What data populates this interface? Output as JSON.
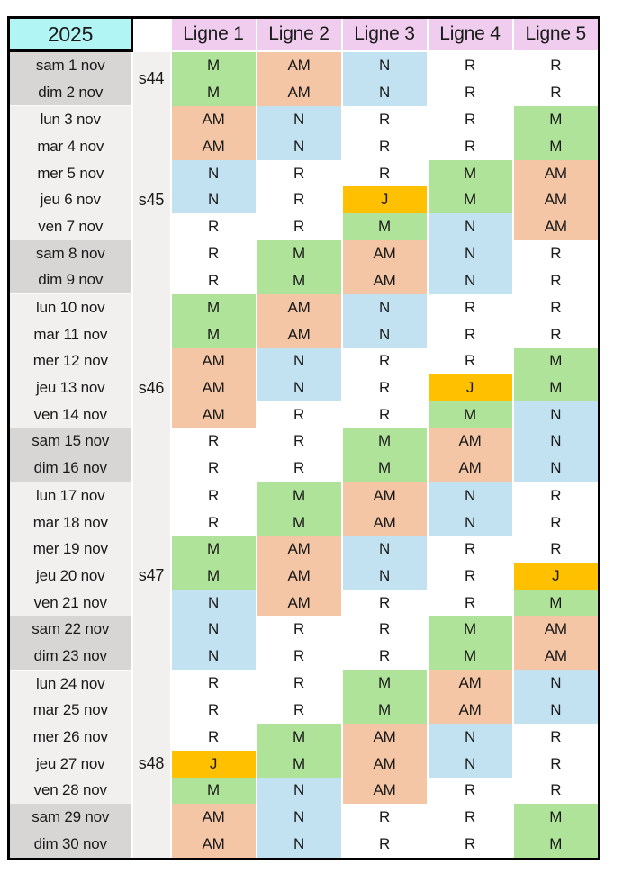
{
  "year_label": "2025",
  "line_headers": [
    "Ligne 1",
    "Ligne 2",
    "Ligne 3",
    "Ligne 4",
    "Ligne 5"
  ],
  "shift_colors": {
    "M": "#b0e39a",
    "AM": "#f5c6a5",
    "N": "#c2e2f1",
    "J": "#ffc000",
    "R": "#ffffff"
  },
  "ui_colors": {
    "year_bg": "#b2f5f5",
    "line_header_bg": "#f0cdee",
    "weekend_bg": "#d8d6d4",
    "weekday_bg": "#f1f0ee",
    "week_col_bg": "#f1f0ee",
    "border_color": "#000000"
  },
  "weeks": [
    {
      "label": "s44",
      "days": [
        {
          "date": "sam 1 nov",
          "values": [
            "M",
            "AM",
            "N",
            "R",
            "R"
          ]
        },
        {
          "date": "dim 2 nov",
          "values": [
            "M",
            "AM",
            "N",
            "R",
            "R"
          ]
        }
      ]
    },
    {
      "label": "s45",
      "days": [
        {
          "date": "lun 3 nov",
          "values": [
            "AM",
            "N",
            "R",
            "R",
            "M"
          ]
        },
        {
          "date": "mar 4 nov",
          "values": [
            "AM",
            "N",
            "R",
            "R",
            "M"
          ]
        },
        {
          "date": "mer 5 nov",
          "values": [
            "N",
            "R",
            "R",
            "M",
            "AM"
          ]
        },
        {
          "date": "jeu 6 nov",
          "values": [
            "N",
            "R",
            "J",
            "M",
            "AM"
          ]
        },
        {
          "date": "ven 7 nov",
          "values": [
            "R",
            "R",
            "M",
            "N",
            "AM"
          ]
        },
        {
          "date": "sam 8 nov",
          "values": [
            "R",
            "M",
            "AM",
            "N",
            "R"
          ]
        },
        {
          "date": "dim 9 nov",
          "values": [
            "R",
            "M",
            "AM",
            "N",
            "R"
          ]
        }
      ]
    },
    {
      "label": "s46",
      "days": [
        {
          "date": "lun 10 nov",
          "values": [
            "M",
            "AM",
            "N",
            "R",
            "R"
          ]
        },
        {
          "date": "mar 11 nov",
          "values": [
            "M",
            "AM",
            "N",
            "R",
            "R"
          ]
        },
        {
          "date": "mer 12 nov",
          "values": [
            "AM",
            "N",
            "R",
            "R",
            "M"
          ]
        },
        {
          "date": "jeu 13 nov",
          "values": [
            "AM",
            "N",
            "R",
            "J",
            "M"
          ]
        },
        {
          "date": "ven 14 nov",
          "values": [
            "AM",
            "R",
            "R",
            "M",
            "N"
          ]
        },
        {
          "date": "sam 15 nov",
          "values": [
            "R",
            "R",
            "M",
            "AM",
            "N"
          ]
        },
        {
          "date": "dim 16 nov",
          "values": [
            "R",
            "R",
            "M",
            "AM",
            "N"
          ]
        }
      ]
    },
    {
      "label": "s47",
      "days": [
        {
          "date": "lun 17 nov",
          "values": [
            "R",
            "M",
            "AM",
            "N",
            "R"
          ]
        },
        {
          "date": "mar 18 nov",
          "values": [
            "R",
            "M",
            "AM",
            "N",
            "R"
          ]
        },
        {
          "date": "mer 19 nov",
          "values": [
            "M",
            "AM",
            "N",
            "R",
            "R"
          ]
        },
        {
          "date": "jeu 20 nov",
          "values": [
            "M",
            "AM",
            "N",
            "R",
            "J"
          ]
        },
        {
          "date": "ven 21 nov",
          "values": [
            "N",
            "AM",
            "R",
            "R",
            "M"
          ]
        },
        {
          "date": "sam 22 nov",
          "values": [
            "N",
            "R",
            "R",
            "M",
            "AM"
          ]
        },
        {
          "date": "dim 23 nov",
          "values": [
            "N",
            "R",
            "R",
            "M",
            "AM"
          ]
        }
      ]
    },
    {
      "label": "s48",
      "days": [
        {
          "date": "lun 24 nov",
          "values": [
            "R",
            "R",
            "M",
            "AM",
            "N"
          ]
        },
        {
          "date": "mar 25 nov",
          "values": [
            "R",
            "R",
            "M",
            "AM",
            "N"
          ]
        },
        {
          "date": "mer 26 nov",
          "values": [
            "R",
            "M",
            "AM",
            "N",
            "R"
          ]
        },
        {
          "date": "jeu 27 nov",
          "values": [
            "J",
            "M",
            "AM",
            "N",
            "R"
          ]
        },
        {
          "date": "ven 28 nov",
          "values": [
            "M",
            "N",
            "AM",
            "R",
            "R"
          ]
        },
        {
          "date": "sam 29 nov",
          "values": [
            "AM",
            "N",
            "R",
            "R",
            "M"
          ]
        },
        {
          "date": "dim 30 nov",
          "values": [
            "AM",
            "N",
            "R",
            "R",
            "M"
          ]
        }
      ]
    }
  ]
}
